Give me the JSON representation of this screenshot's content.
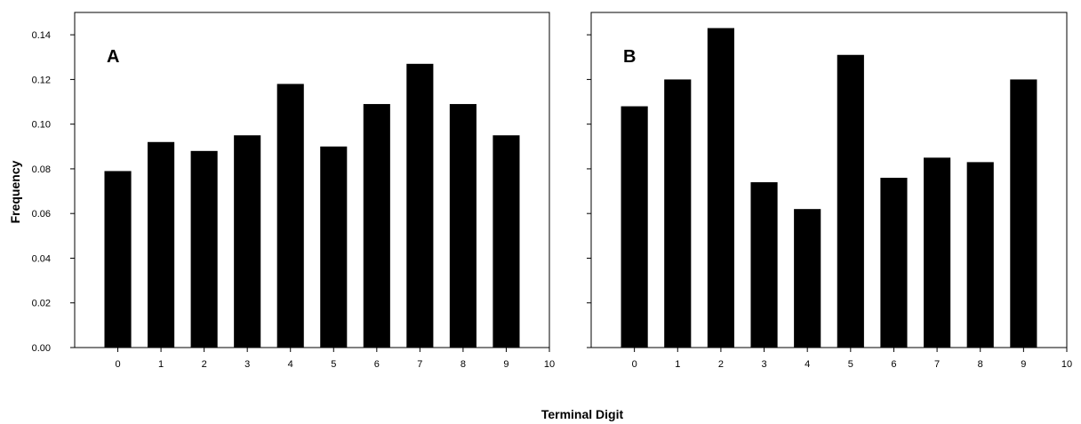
{
  "chart_data": [
    {
      "type": "bar",
      "panel_label": "A",
      "categories": [
        "0",
        "1",
        "2",
        "3",
        "4",
        "5",
        "6",
        "7",
        "8",
        "9"
      ],
      "values": [
        0.079,
        0.092,
        0.088,
        0.095,
        0.118,
        0.09,
        0.109,
        0.127,
        0.109,
        0.095
      ],
      "x_ticks": [
        "0",
        "1",
        "2",
        "3",
        "4",
        "5",
        "6",
        "7",
        "8",
        "9",
        "10"
      ],
      "y_ticks": [
        "0.00",
        "0.02",
        "0.04",
        "0.06",
        "0.08",
        "0.10",
        "0.12",
        "0.14"
      ],
      "ylim": [
        0,
        0.15
      ],
      "xlim": [
        -1,
        10
      ],
      "bar_color": "#000000"
    },
    {
      "type": "bar",
      "panel_label": "B",
      "categories": [
        "0",
        "1",
        "2",
        "3",
        "4",
        "5",
        "6",
        "7",
        "8",
        "9"
      ],
      "values": [
        0.108,
        0.12,
        0.143,
        0.074,
        0.062,
        0.131,
        0.076,
        0.085,
        0.083,
        0.12
      ],
      "x_ticks": [
        "0",
        "1",
        "2",
        "3",
        "4",
        "5",
        "6",
        "7",
        "8",
        "9",
        "10"
      ],
      "y_ticks": [],
      "ylim": [
        0,
        0.15
      ],
      "xlim": [
        -1,
        10
      ],
      "bar_color": "#000000"
    }
  ],
  "axes": {
    "ylabel": "Frequency",
    "xlabel": "Terminal Digit"
  }
}
